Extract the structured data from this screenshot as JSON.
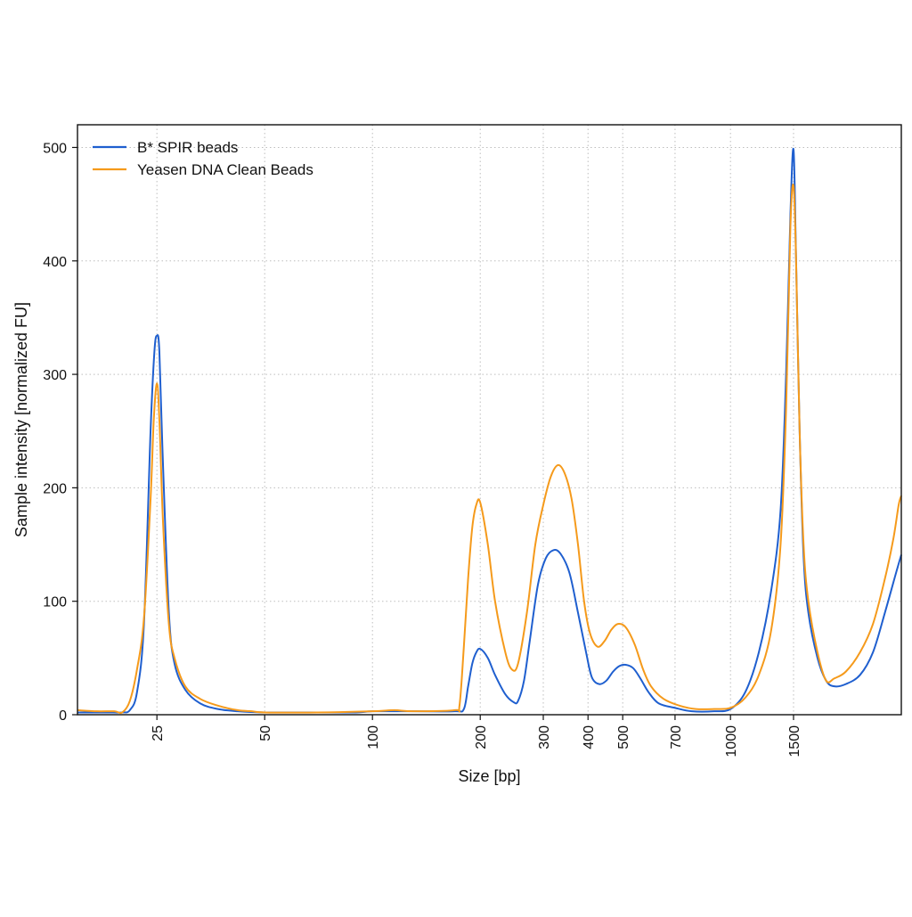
{
  "chart_data": {
    "type": "line",
    "xlabel": "Size [bp]",
    "ylabel": "Sample intensity [normalized FU]",
    "x_scale": "log",
    "xlim": [
      15,
      3000
    ],
    "ylim": [
      0,
      520
    ],
    "grid": true,
    "legend_position": "top-left",
    "x_ticks": [
      25,
      50,
      100,
      200,
      300,
      400,
      500,
      700,
      1000,
      1500
    ],
    "x_tick_labels": [
      "25",
      "50",
      "100",
      "200",
      "300",
      "400",
      "500",
      "700",
      "1000",
      "1500"
    ],
    "y_ticks": [
      0,
      100,
      200,
      300,
      400,
      500
    ],
    "y_tick_labels": [
      "0",
      "100",
      "200",
      "300",
      "400",
      "500"
    ],
    "series": [
      {
        "name": "B* SPIR beads",
        "color": "#1f5fcf",
        "points": [
          [
            15,
            2
          ],
          [
            18,
            2
          ],
          [
            20,
            2
          ],
          [
            21,
            4
          ],
          [
            22,
            20
          ],
          [
            23,
            80
          ],
          [
            24,
            250
          ],
          [
            24.6,
            320
          ],
          [
            25,
            334
          ],
          [
            25.4,
            320
          ],
          [
            26,
            220
          ],
          [
            27,
            90
          ],
          [
            28,
            45
          ],
          [
            30,
            22
          ],
          [
            33,
            10
          ],
          [
            37,
            5
          ],
          [
            42,
            3
          ],
          [
            50,
            2
          ],
          [
            70,
            2
          ],
          [
            90,
            2
          ],
          [
            100,
            3
          ],
          [
            130,
            3
          ],
          [
            170,
            3
          ],
          [
            180,
            5
          ],
          [
            185,
            25
          ],
          [
            190,
            45
          ],
          [
            195,
            55
          ],
          [
            200,
            58
          ],
          [
            210,
            50
          ],
          [
            220,
            35
          ],
          [
            235,
            18
          ],
          [
            248,
            11
          ],
          [
            255,
            12
          ],
          [
            265,
            30
          ],
          [
            275,
            65
          ],
          [
            290,
            115
          ],
          [
            305,
            138
          ],
          [
            320,
            145
          ],
          [
            335,
            142
          ],
          [
            355,
            125
          ],
          [
            375,
            90
          ],
          [
            395,
            55
          ],
          [
            410,
            33
          ],
          [
            430,
            27
          ],
          [
            450,
            30
          ],
          [
            470,
            38
          ],
          [
            490,
            43
          ],
          [
            510,
            44
          ],
          [
            535,
            41
          ],
          [
            560,
            32
          ],
          [
            590,
            20
          ],
          [
            630,
            10
          ],
          [
            700,
            6
          ],
          [
            780,
            3
          ],
          [
            900,
            3
          ],
          [
            1000,
            5
          ],
          [
            1100,
            20
          ],
          [
            1200,
            55
          ],
          [
            1300,
            110
          ],
          [
            1380,
            180
          ],
          [
            1430,
            300
          ],
          [
            1470,
            440
          ],
          [
            1500,
            498
          ],
          [
            1525,
            400
          ],
          [
            1560,
            250
          ],
          [
            1600,
            140
          ],
          [
            1650,
            90
          ],
          [
            1750,
            50
          ],
          [
            1850,
            30
          ],
          [
            1950,
            25
          ],
          [
            2100,
            27
          ],
          [
            2300,
            35
          ],
          [
            2500,
            55
          ],
          [
            2700,
            90
          ],
          [
            2900,
            125
          ],
          [
            3000,
            141
          ]
        ]
      },
      {
        "name": "Yeasen DNA Clean Beads",
        "color": "#f59a1b",
        "points": [
          [
            15,
            4
          ],
          [
            17,
            3
          ],
          [
            19,
            3
          ],
          [
            20,
            2
          ],
          [
            21,
            12
          ],
          [
            22,
            40
          ],
          [
            23,
            85
          ],
          [
            24,
            190
          ],
          [
            24.5,
            260
          ],
          [
            25,
            292
          ],
          [
            25.4,
            260
          ],
          [
            26,
            170
          ],
          [
            27,
            80
          ],
          [
            28,
            50
          ],
          [
            30,
            25
          ],
          [
            33,
            14
          ],
          [
            37,
            8
          ],
          [
            42,
            4
          ],
          [
            46,
            3
          ],
          [
            50,
            2
          ],
          [
            70,
            2
          ],
          [
            100,
            3
          ],
          [
            115,
            4
          ],
          [
            130,
            3
          ],
          [
            170,
            4
          ],
          [
            175,
            8
          ],
          [
            180,
            60
          ],
          [
            185,
            120
          ],
          [
            190,
            165
          ],
          [
            195,
            185
          ],
          [
            200,
            187
          ],
          [
            210,
            150
          ],
          [
            220,
            100
          ],
          [
            235,
            55
          ],
          [
            245,
            40
          ],
          [
            255,
            45
          ],
          [
            270,
            90
          ],
          [
            285,
            150
          ],
          [
            300,
            185
          ],
          [
            315,
            210
          ],
          [
            330,
            220
          ],
          [
            345,
            212
          ],
          [
            360,
            190
          ],
          [
            375,
            150
          ],
          [
            390,
            100
          ],
          [
            405,
            72
          ],
          [
            425,
            60
          ],
          [
            445,
            65
          ],
          [
            465,
            75
          ],
          [
            485,
            80
          ],
          [
            510,
            77
          ],
          [
            540,
            62
          ],
          [
            570,
            40
          ],
          [
            600,
            25
          ],
          [
            650,
            14
          ],
          [
            720,
            8
          ],
          [
            800,
            5
          ],
          [
            900,
            5
          ],
          [
            1000,
            6
          ],
          [
            1100,
            15
          ],
          [
            1200,
            35
          ],
          [
            1300,
            75
          ],
          [
            1380,
            150
          ],
          [
            1430,
            270
          ],
          [
            1470,
            430
          ],
          [
            1500,
            466
          ],
          [
            1525,
            400
          ],
          [
            1560,
            250
          ],
          [
            1600,
            150
          ],
          [
            1650,
            100
          ],
          [
            1750,
            55
          ],
          [
            1850,
            30
          ],
          [
            1950,
            32
          ],
          [
            2100,
            38
          ],
          [
            2300,
            55
          ],
          [
            2500,
            80
          ],
          [
            2700,
            120
          ],
          [
            2850,
            155
          ],
          [
            2950,
            185
          ],
          [
            3000,
            193
          ]
        ]
      }
    ]
  }
}
